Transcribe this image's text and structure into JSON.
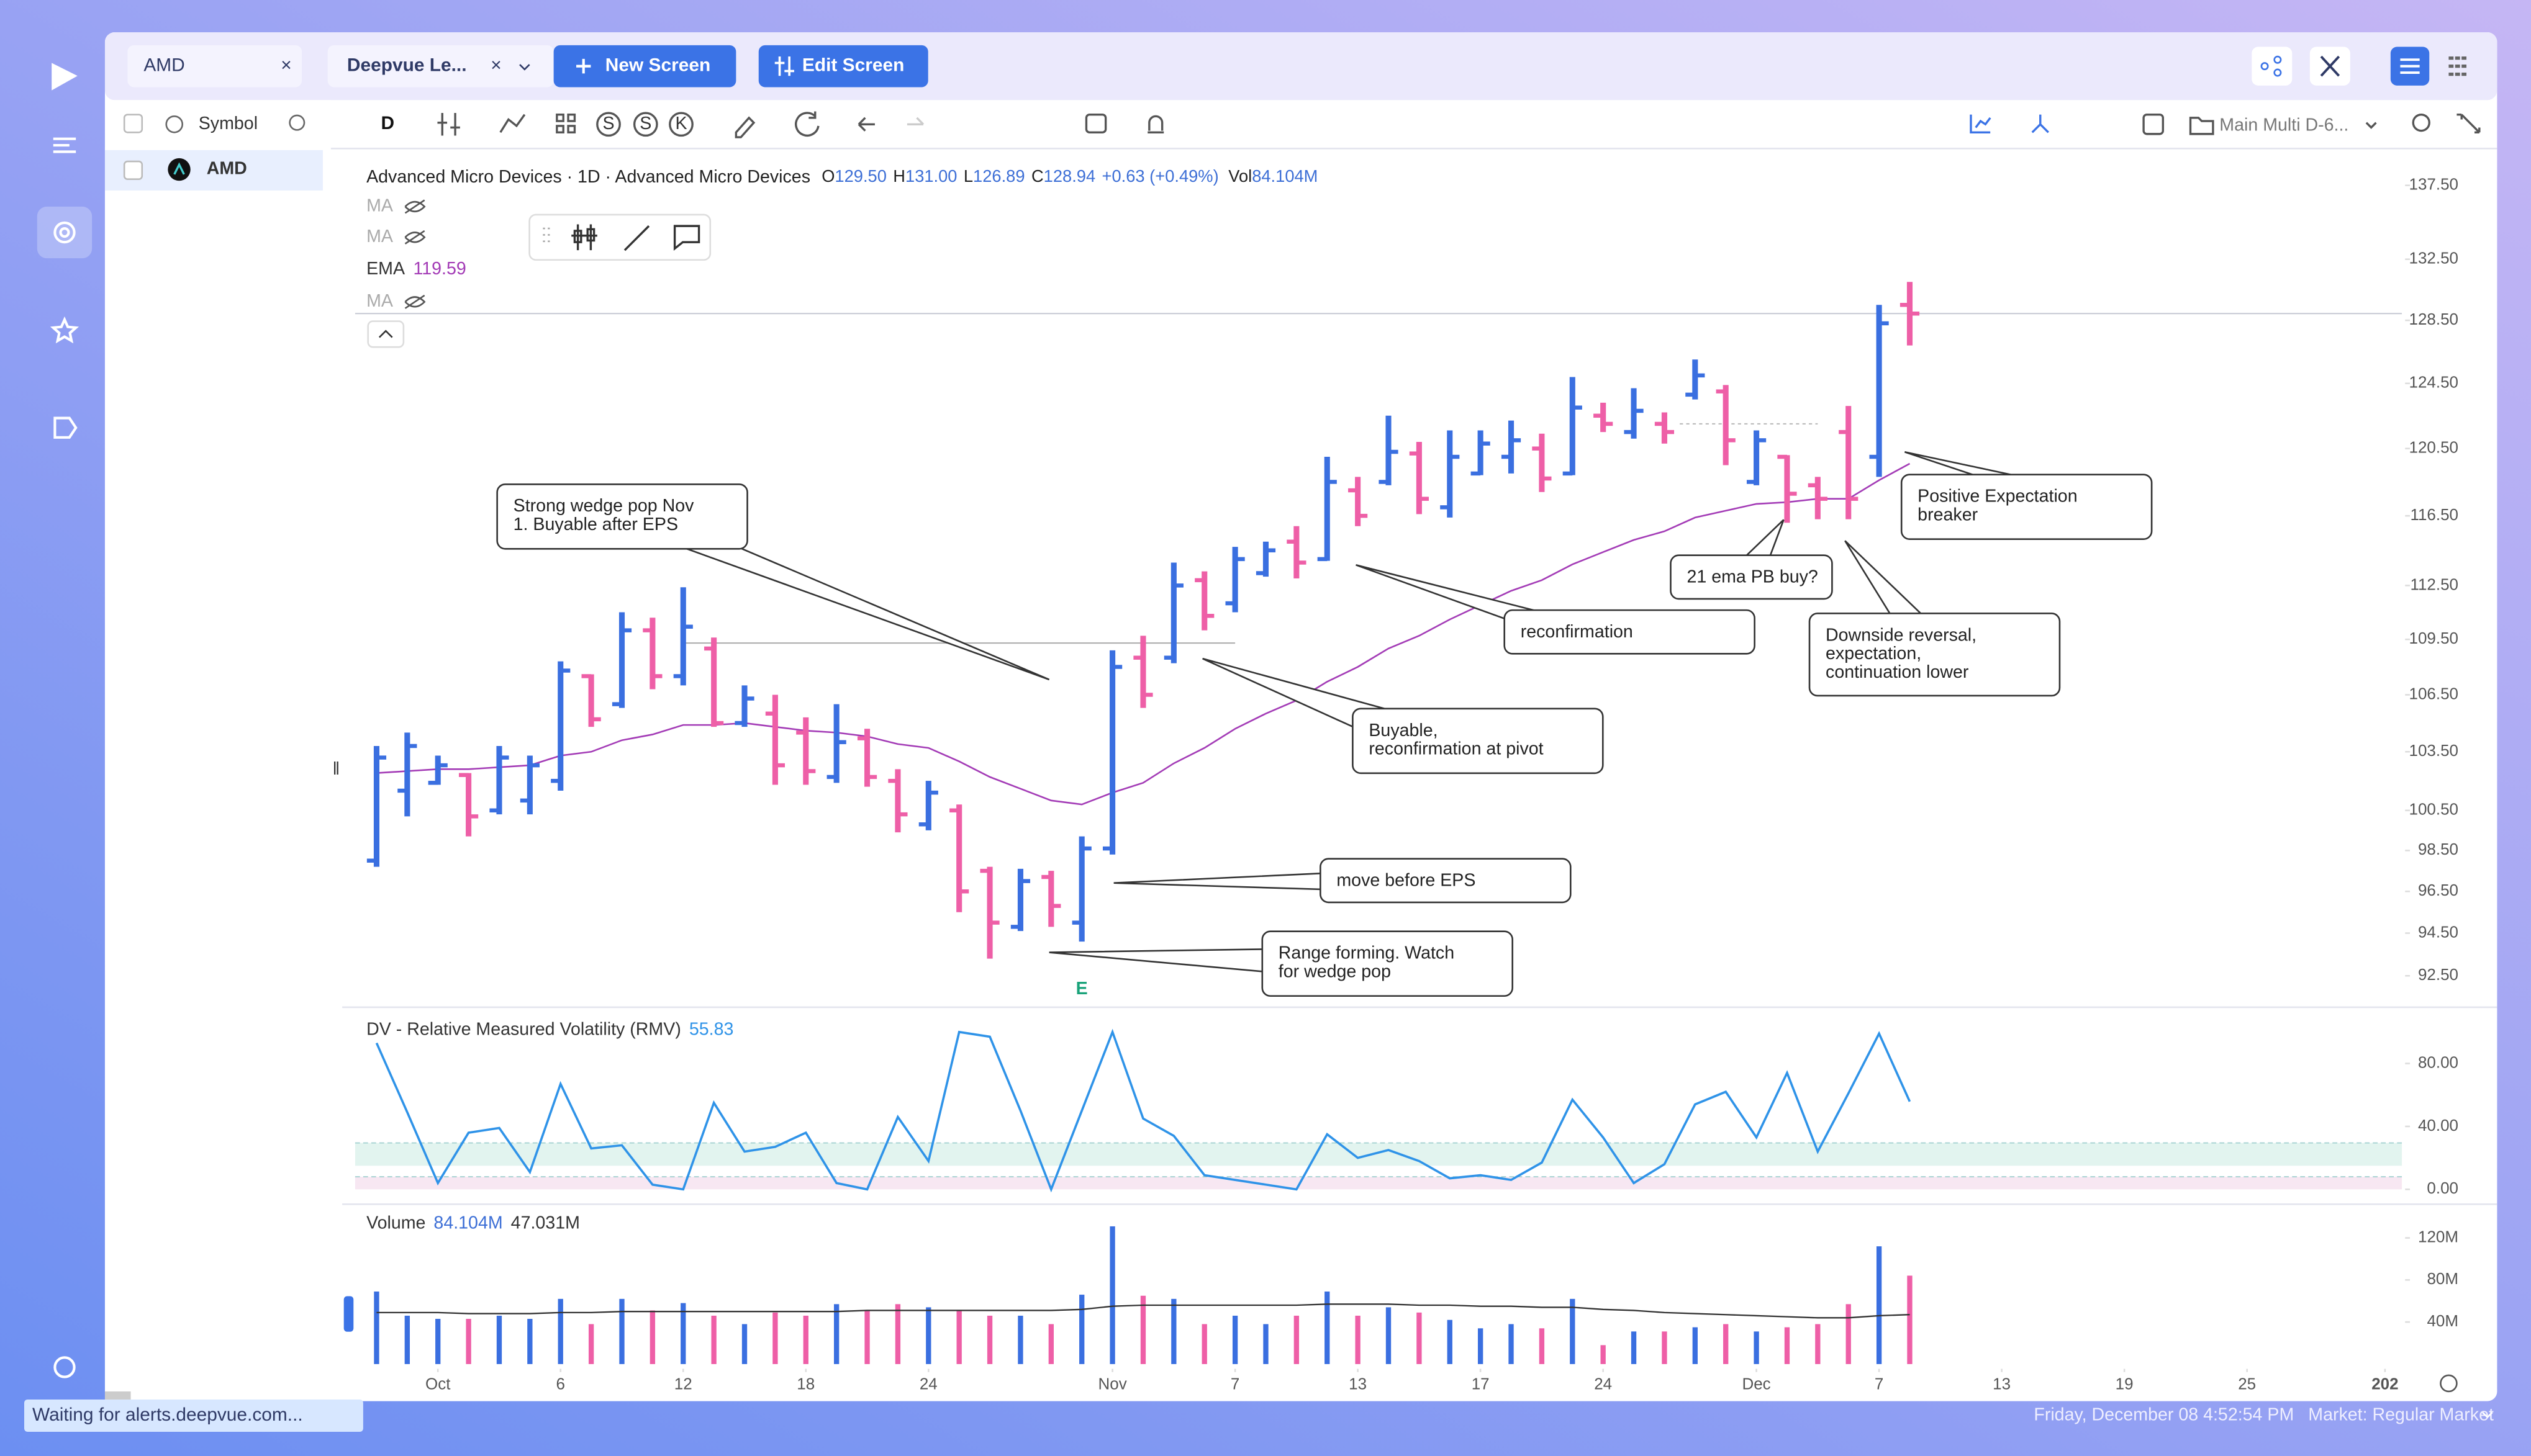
{
  "ui": {
    "tabs": [
      "AMD",
      "Deepvue Le..."
    ],
    "buttons": [
      "New Screen",
      "Edit Screen"
    ],
    "toolbar": {
      "interval": "D",
      "badges": [
        "S",
        "S",
        "K"
      ],
      "layout": "Main Multi D-6..."
    },
    "sidebar": {
      "header": "Symbol",
      "rows": [
        "AMD"
      ]
    },
    "status": "Waiting for alerts.deepvue.com...",
    "footer": {
      "time": "Friday, December 08 4:52:54 PM",
      "market": "Market: Regular Market"
    }
  },
  "chart_data": [
    {
      "type": "ohlc",
      "title": "Advanced Micro Devices · 1D · Advanced Micro Devices",
      "header": {
        "fields": [
          {
            "key": "O",
            "value": "129.50"
          },
          {
            "key": "H",
            "value": "131.00"
          },
          {
            "key": "L",
            "value": "126.89"
          },
          {
            "key": "C",
            "value": "128.94"
          }
        ],
        "change": "+0.63 (+0.49%)",
        "vol_key": "Vol",
        "vol": "84.104M"
      },
      "hidden_indicators": [
        "MA",
        "MA",
        "MA"
      ],
      "ema": {
        "name": "EMA",
        "value_label": "119.59",
        "color": "#a33bb6",
        "values": [
          102.4,
          102.5,
          102.6,
          102.6,
          102.7,
          102.8,
          103.3,
          103.5,
          104.1,
          104.4,
          104.9,
          104.9,
          105.0,
          104.8,
          104.6,
          104.5,
          104.3,
          103.9,
          103.7,
          103.0,
          102.2,
          101.6,
          101.0,
          100.8,
          101.4,
          101.9,
          102.9,
          103.7,
          104.7,
          105.5,
          106.2,
          107.2,
          108.0,
          109.0,
          109.7,
          110.6,
          111.4,
          112.2,
          112.8,
          113.7,
          114.4,
          115.1,
          115.6,
          116.4,
          116.8,
          117.2,
          117.3,
          117.5,
          117.5,
          118.6,
          119.59
        ]
      },
      "x": [
        0,
        1,
        2,
        3,
        4,
        5,
        6,
        7,
        8,
        9,
        10,
        11,
        12,
        13,
        14,
        15,
        16,
        17,
        18,
        19,
        20,
        21,
        22,
        23,
        24,
        25,
        26,
        27,
        28,
        29,
        30,
        31,
        32,
        33,
        34,
        35,
        36,
        37,
        38,
        39,
        40,
        41,
        42,
        43,
        44,
        45,
        46,
        47,
        48,
        49,
        50
      ],
      "open": [
        98.0,
        101.5,
        101.9,
        102.3,
        100.5,
        101.0,
        102.0,
        107.5,
        106.0,
        110.0,
        107.5,
        109.0,
        105.0,
        105.5,
        104.5,
        102.2,
        104.2,
        102.0,
        99.8,
        100.5,
        97.5,
        94.8,
        97.2,
        95.0,
        98.6,
        108.5,
        108.5,
        112.8,
        111.5,
        113.2,
        115.0,
        114.0,
        118.0,
        118.5,
        120.2,
        117.0,
        119.0,
        120.0,
        120.5,
        119.0,
        122.5,
        121.5,
        122.0,
        123.8,
        124.0,
        118.5,
        120.0,
        118.3,
        121.5,
        120.0,
        129.5
      ],
      "high": [
        103.8,
        104.5,
        103.3,
        102.4,
        103.8,
        103.3,
        108.3,
        107.6,
        111.0,
        110.7,
        112.4,
        109.6,
        107.0,
        106.5,
        105.3,
        106.0,
        104.7,
        102.6,
        102.0,
        100.8,
        97.7,
        97.6,
        97.5,
        99.2,
        108.9,
        109.7,
        113.8,
        113.3,
        114.7,
        115.0,
        115.9,
        120.0,
        118.8,
        122.5,
        120.9,
        121.6,
        121.6,
        122.2,
        121.4,
        124.9,
        123.3,
        124.2,
        122.7,
        126.0,
        124.4,
        121.6,
        120.1,
        118.8,
        123.1,
        129.5,
        131.0
      ],
      "low": [
        97.7,
        100.2,
        101.8,
        99.2,
        100.3,
        100.3,
        101.5,
        104.8,
        105.8,
        106.8,
        107.0,
        104.8,
        104.8,
        101.8,
        101.8,
        101.9,
        101.7,
        99.4,
        99.5,
        95.5,
        93.3,
        94.6,
        94.8,
        94.1,
        98.3,
        105.8,
        108.2,
        110.0,
        111.0,
        113.0,
        112.9,
        113.9,
        115.9,
        118.3,
        116.6,
        116.4,
        118.9,
        119.0,
        117.9,
        118.9,
        121.5,
        121.1,
        120.8,
        123.5,
        119.5,
        118.3,
        116.1,
        116.3,
        116.3,
        118.8,
        126.89
      ],
      "close": [
        103.2,
        103.8,
        102.8,
        100.2,
        103.2,
        102.8,
        107.8,
        105.2,
        110.0,
        107.5,
        110.2,
        105.0,
        106.3,
        102.8,
        102.5,
        104.0,
        102.2,
        100.3,
        101.4,
        96.5,
        95.0,
        97.0,
        95.8,
        98.6,
        108.0,
        106.5,
        112.5,
        110.8,
        114.0,
        114.5,
        113.8,
        118.5,
        116.5,
        120.3,
        117.5,
        120.0,
        120.8,
        121.0,
        118.7,
        123.0,
        122.0,
        122.8,
        121.5,
        125.0,
        121.0,
        121.0,
        117.8,
        117.5,
        117.5,
        128.31,
        128.94
      ],
      "up_color": "#3a6fe0",
      "down_color": "#ee5fa7",
      "log": true,
      "ylim": [
        91.2,
        139.5
      ],
      "xlim": [
        -0.7,
        66.05
      ],
      "yticks": [
        {
          "value": 137.5,
          "label": "137.50"
        },
        {
          "value": 132.5,
          "label": "132.50"
        },
        {
          "value": 128.5,
          "label": "128.50"
        },
        {
          "value": 124.5,
          "label": "124.50"
        },
        {
          "value": 120.5,
          "label": "120.50"
        },
        {
          "value": 116.5,
          "label": "116.50"
        },
        {
          "value": 112.5,
          "label": "112.50"
        },
        {
          "value": 109.5,
          "label": "109.50"
        },
        {
          "value": 106.5,
          "label": "106.50"
        },
        {
          "value": 103.5,
          "label": "103.50"
        },
        {
          "value": 100.5,
          "label": "100.50"
        },
        {
          "value": 98.5,
          "label": "98.50"
        },
        {
          "value": 96.5,
          "label": "96.50"
        },
        {
          "value": 94.5,
          "label": "94.50"
        },
        {
          "value": 92.5,
          "label": "92.50"
        }
      ],
      "drawings": [
        {
          "price": 109.3,
          "from": 10,
          "to": 28
        },
        {
          "price": 122.0,
          "from": 42.5,
          "to": 47
        }
      ],
      "earnings": {
        "label": "E",
        "x": 23
      },
      "annotations": [
        {
          "lines": [
            "Strong wedge pop Nov",
            "1. Buyable after EPS"
          ]
        },
        {
          "lines": [
            "reconfirmation"
          ]
        },
        {
          "lines": [
            "Buyable,",
            "reconfirmation at pivot"
          ]
        },
        {
          "lines": [
            "move before EPS"
          ]
        },
        {
          "lines": [
            "Range forming. Watch",
            "for wedge pop"
          ]
        },
        {
          "lines": [
            "21 ema PB buy?"
          ]
        },
        {
          "lines": [
            "Downside reversal,",
            "expectation,",
            "continuation lower"
          ]
        },
        {
          "lines": [
            "Positive Expectation",
            "breaker"
          ]
        }
      ]
    },
    {
      "type": "line",
      "title": "DV - Relative Measured Volatility (RMV)",
      "legend_value": "55.83",
      "color": "#2f93e8",
      "values": [
        93,
        49,
        4,
        36,
        39,
        11,
        67,
        26,
        28,
        3,
        0,
        55,
        24,
        27,
        36,
        4,
        0,
        46,
        18,
        100,
        97,
        50,
        0,
        50,
        100,
        45,
        34,
        9,
        6,
        3,
        0,
        35,
        20,
        25,
        18,
        7,
        9,
        6,
        17,
        57,
        33,
        4,
        16,
        54,
        62,
        33,
        74,
        24,
        61,
        99,
        55.83
      ],
      "bands": [
        {
          "from": 15,
          "to": 29.5,
          "color": "#e2f4ef"
        },
        {
          "from": 0,
          "to": 8,
          "color": "#f7e7f2"
        }
      ],
      "ylim": [
        -8.4,
        114.7
      ],
      "yticks": [
        {
          "value": 80,
          "label": "80.00"
        },
        {
          "value": 40,
          "label": "40.00"
        },
        {
          "value": 0,
          "label": "0.00"
        }
      ]
    },
    {
      "type": "bar",
      "title": "Volume",
      "legend_values": [
        "84.104M",
        "47.031M"
      ],
      "values": [
        69000000,
        46000000,
        43000000,
        43000000,
        46000000,
        43000000,
        62000000,
        38000000,
        62000000,
        51000000,
        58000000,
        46000000,
        38000000,
        49000000,
        46000000,
        57000000,
        51000000,
        57000000,
        54000000,
        51000000,
        46000000,
        46000000,
        38000000,
        66000000,
        131000000,
        65000000,
        62000000,
        38000000,
        46000000,
        38000000,
        46000000,
        69000000,
        46000000,
        54000000,
        49000000,
        42000000,
        34000000,
        38000000,
        34000000,
        62000000,
        18000000,
        31000000,
        31000000,
        35000000,
        38000000,
        31000000,
        35000000,
        38000000,
        57000000,
        112000000,
        84104000
      ],
      "ma": {
        "color": "#333333",
        "values": [
          49000000,
          49000000,
          49000000,
          48000000,
          48000000,
          48000000,
          49000000,
          49000000,
          50000000,
          50000000,
          50000000,
          50000000,
          50000000,
          50000000,
          50000000,
          50000000,
          51000000,
          51000000,
          51000000,
          51000000,
          51000000,
          51000000,
          51000000,
          52000000,
          55000000,
          56000000,
          56000000,
          56000000,
          56000000,
          56000000,
          56000000,
          57000000,
          57000000,
          57000000,
          56000000,
          56000000,
          55000000,
          55000000,
          54000000,
          54000000,
          52000000,
          51000000,
          49000000,
          48000000,
          47000000,
          46000000,
          45000000,
          44000000,
          44000000,
          46000000,
          47031000
        ]
      },
      "ylim": [
        -3000000,
        149000000
      ],
      "yticks": [
        {
          "value": 120000000,
          "label": "120M"
        },
        {
          "value": 80000000,
          "label": "80M"
        },
        {
          "value": 40000000,
          "label": "40M"
        }
      ],
      "xticks": [
        {
          "value": 2,
          "label": "Oct"
        },
        6,
        {
          "value": 10,
          "label": "12"
        },
        {
          "value": 14,
          "label": "18"
        },
        {
          "value": 18,
          "label": "24"
        },
        {
          "value": 24,
          "label": "Nov"
        },
        {
          "value": 28,
          "label": "7"
        },
        {
          "value": 32,
          "label": "13"
        },
        {
          "value": 36,
          "label": "17"
        },
        {
          "value": 40,
          "label": "24"
        },
        {
          "value": 45,
          "label": "Dec"
        },
        {
          "value": 49,
          "label": "7"
        },
        {
          "value": 53,
          "label": "13"
        },
        {
          "value": 57,
          "label": "19"
        },
        {
          "value": 61,
          "label": "25"
        },
        {
          "value": 65.5,
          "label": "202"
        }
      ]
    }
  ]
}
